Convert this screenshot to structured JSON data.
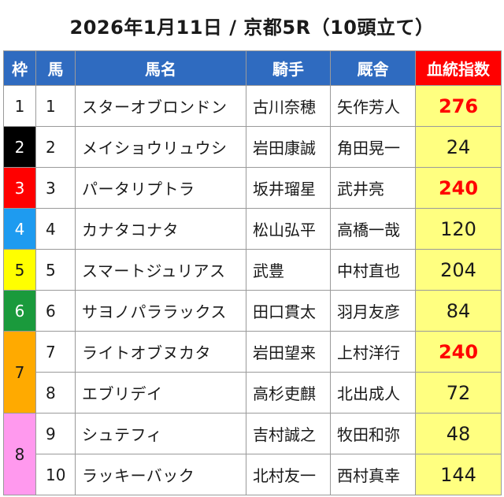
{
  "title": "2026年1月11日 / 京都5R（10頭立て）",
  "headers": {
    "waku": "枠",
    "uma": "馬",
    "name": "馬名",
    "jockey": "騎手",
    "trainer": "厩舎",
    "index": "血統指数"
  },
  "colors": {
    "header_bg": "#2f6bc0",
    "index_header_bg": "#ff0000",
    "score_bg": "#ffff80",
    "score_highlight": "#ff0000",
    "waku1": "#ffffff",
    "waku2": "#000000",
    "waku3": "#ff0000",
    "waku4": "#1e9bf0",
    "waku5": "#ffff00",
    "waku6": "#1a9a3c",
    "waku7": "#ffaa00",
    "waku8": "#ff99ee"
  },
  "rows": [
    {
      "waku": "1",
      "uma": "1",
      "name": "スターオブロンドン",
      "jockey": "古川奈穂",
      "trainer": "矢作芳人",
      "score": "276",
      "highlight": true
    },
    {
      "waku": "2",
      "uma": "2",
      "name": "メイショウリュウシ",
      "jockey": "岩田康誠",
      "trainer": "角田晃一",
      "score": "24",
      "highlight": false
    },
    {
      "waku": "3",
      "uma": "3",
      "name": "パータリプトラ",
      "jockey": "坂井瑠星",
      "trainer": "武井亮",
      "score": "240",
      "highlight": true
    },
    {
      "waku": "4",
      "uma": "4",
      "name": "カナタコナタ",
      "jockey": "松山弘平",
      "trainer": "高橋一哉",
      "score": "120",
      "highlight": false
    },
    {
      "waku": "5",
      "uma": "5",
      "name": "スマートジュリアス",
      "jockey": "武豊",
      "trainer": "中村直也",
      "score": "204",
      "highlight": false
    },
    {
      "waku": "6",
      "uma": "6",
      "name": "サヨノパララックス",
      "jockey": "田口貫太",
      "trainer": "羽月友彦",
      "score": "84",
      "highlight": false
    },
    {
      "waku": "7",
      "uma": "7",
      "name": "ライトオブヌカタ",
      "jockey": "岩田望来",
      "trainer": "上村洋行",
      "score": "240",
      "highlight": true
    },
    {
      "waku": "7",
      "uma": "8",
      "name": "エブリデイ",
      "jockey": "高杉吏麒",
      "trainer": "北出成人",
      "score": "72",
      "highlight": false
    },
    {
      "waku": "8",
      "uma": "9",
      "name": "シュテフィ",
      "jockey": "吉村誠之",
      "trainer": "牧田和弥",
      "score": "48",
      "highlight": false
    },
    {
      "waku": "8",
      "uma": "10",
      "name": "ラッキーバック",
      "jockey": "北村友一",
      "trainer": "西村真幸",
      "score": "144",
      "highlight": false
    }
  ]
}
